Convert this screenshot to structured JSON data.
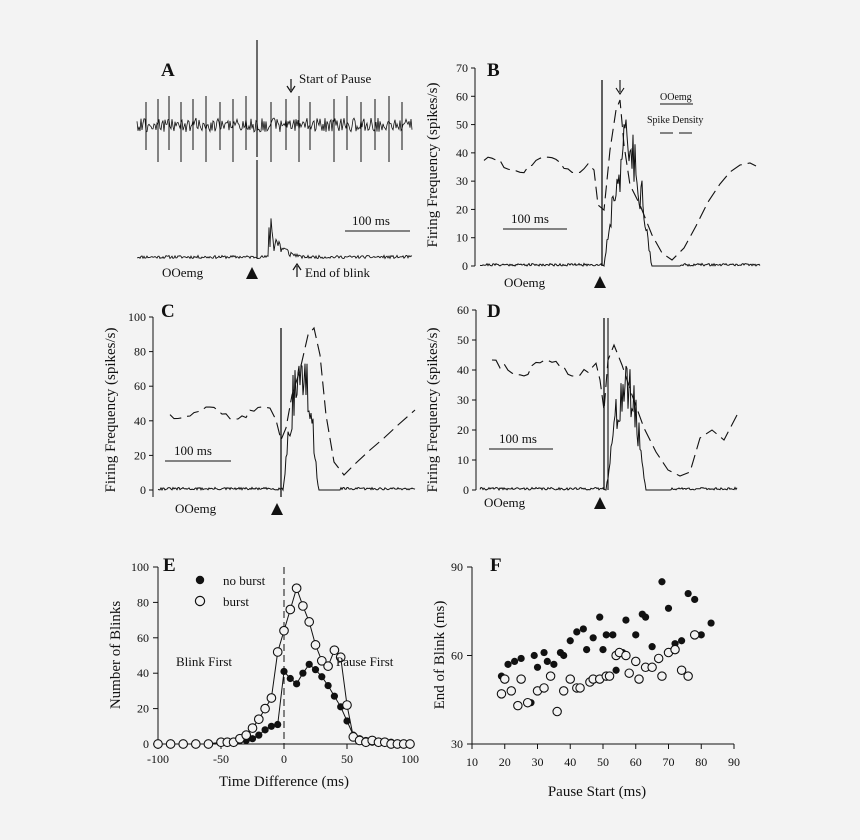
{
  "figure": {
    "background": "#f3f3f3",
    "ink": "#111111"
  },
  "panels": {
    "A": {
      "label": "A",
      "annot_start_pause": "Start of Pause",
      "annot_end_blink": "End of blink",
      "scale_bar": "100 ms",
      "trace_label": "OOemg"
    },
    "B": {
      "label": "B",
      "ylabel": "Firing Frequency (spikes/s)",
      "yticks": [
        0,
        10,
        20,
        30,
        40,
        50,
        60,
        70
      ],
      "scale_bar": "100 ms",
      "trace_label": "OOemg",
      "legend_emg": "OOemg",
      "legend_density": "Spike Density"
    },
    "C": {
      "label": "C",
      "ylabel": "Firing Frequency (spikes/s)",
      "yticks": [
        0,
        20,
        40,
        60,
        80,
        100
      ],
      "scale_bar": "100 ms",
      "trace_label": "OOemg"
    },
    "D": {
      "label": "D",
      "ylabel": "Firing Frequency (spikes/s)",
      "yticks": [
        0,
        10,
        20,
        30,
        40,
        50,
        60
      ],
      "scale_bar": "100 ms",
      "trace_label": "OOemg"
    },
    "E": {
      "label": "E",
      "legend_no_burst": "no burst",
      "legend_burst": "burst",
      "annot_blink_first": "Blink First",
      "annot_pause_first": "Pause First"
    },
    "F": {
      "label": "F"
    }
  },
  "chart_data": [
    {
      "id": "E",
      "type": "line",
      "title": "",
      "xlabel": "Time Difference (ms)",
      "ylabel": "Number of Blinks",
      "xlim": [
        -100,
        100
      ],
      "ylim": [
        0,
        100
      ],
      "xticks": [
        -100,
        -50,
        0,
        50,
        100
      ],
      "yticks": [
        0,
        20,
        40,
        60,
        80,
        100
      ],
      "x": [
        -100,
        -90,
        -80,
        -70,
        -60,
        -50,
        -45,
        -40,
        -35,
        -30,
        -25,
        -20,
        -15,
        -10,
        -5,
        0,
        5,
        10,
        15,
        20,
        25,
        30,
        35,
        40,
        45,
        50,
        55,
        60,
        65,
        70,
        75,
        80,
        85,
        90,
        95,
        100
      ],
      "series": [
        {
          "name": "no burst",
          "marker": "filled",
          "values": [
            0,
            0,
            0,
            0,
            0,
            1,
            1,
            1,
            2,
            2,
            3,
            5,
            8,
            10,
            11,
            41,
            37,
            34,
            40,
            45,
            42,
            38,
            33,
            27,
            21,
            13,
            5,
            3,
            2,
            1,
            1,
            1,
            1,
            0,
            0,
            0
          ]
        },
        {
          "name": "burst",
          "marker": "open",
          "values": [
            0,
            0,
            0,
            0,
            0,
            1,
            1,
            1,
            3,
            5,
            9,
            14,
            20,
            26,
            52,
            64,
            76,
            88,
            78,
            69,
            56,
            47,
            44,
            53,
            49,
            22,
            4,
            2,
            1,
            2,
            1,
            1,
            0,
            0,
            0,
            0
          ]
        }
      ],
      "vline_x": 0
    },
    {
      "id": "F",
      "type": "scatter",
      "title": "",
      "xlabel": "Pause Start (ms)",
      "ylabel": "End of Blink (ms)",
      "xlim": [
        10,
        90
      ],
      "ylim": [
        30,
        90
      ],
      "xticks": [
        10,
        20,
        30,
        40,
        50,
        60,
        70,
        80,
        90
      ],
      "yticks": [
        30,
        60,
        90
      ],
      "series": [
        {
          "name": "filled",
          "marker": "filled",
          "points": [
            [
              19,
              53
            ],
            [
              21,
              57
            ],
            [
              23,
              58
            ],
            [
              25,
              59
            ],
            [
              28,
              44
            ],
            [
              29,
              60
            ],
            [
              30,
              56
            ],
            [
              32,
              61
            ],
            [
              33,
              58
            ],
            [
              35,
              57
            ],
            [
              37,
              61
            ],
            [
              38,
              60
            ],
            [
              40,
              65
            ],
            [
              42,
              68
            ],
            [
              44,
              69
            ],
            [
              45,
              62
            ],
            [
              47,
              66
            ],
            [
              49,
              73
            ],
            [
              50,
              62
            ],
            [
              51,
              67
            ],
            [
              53,
              67
            ],
            [
              54,
              55
            ],
            [
              56,
              61
            ],
            [
              57,
              72
            ],
            [
              60,
              67
            ],
            [
              62,
              74
            ],
            [
              63,
              73
            ],
            [
              65,
              63
            ],
            [
              67,
              59
            ],
            [
              68,
              85
            ],
            [
              70,
              76
            ],
            [
              72,
              64
            ],
            [
              74,
              65
            ],
            [
              76,
              81
            ],
            [
              78,
              79
            ],
            [
              80,
              67
            ],
            [
              83,
              71
            ]
          ]
        },
        {
          "name": "open",
          "marker": "open",
          "points": [
            [
              19,
              47
            ],
            [
              20,
              52
            ],
            [
              22,
              48
            ],
            [
              24,
              43
            ],
            [
              25,
              52
            ],
            [
              27,
              44
            ],
            [
              30,
              48
            ],
            [
              32,
              49
            ],
            [
              34,
              53
            ],
            [
              36,
              41
            ],
            [
              38,
              48
            ],
            [
              40,
              52
            ],
            [
              42,
              49
            ],
            [
              43,
              49
            ],
            [
              46,
              51
            ],
            [
              47,
              52
            ],
            [
              49,
              52
            ],
            [
              51,
              53
            ],
            [
              52,
              53
            ],
            [
              54,
              60
            ],
            [
              55,
              61
            ],
            [
              57,
              60
            ],
            [
              58,
              54
            ],
            [
              60,
              58
            ],
            [
              61,
              52
            ],
            [
              63,
              56
            ],
            [
              65,
              56
            ],
            [
              67,
              59
            ],
            [
              68,
              53
            ],
            [
              70,
              61
            ],
            [
              72,
              62
            ],
            [
              74,
              55
            ],
            [
              76,
              53
            ],
            [
              78,
              67
            ]
          ]
        }
      ]
    }
  ]
}
